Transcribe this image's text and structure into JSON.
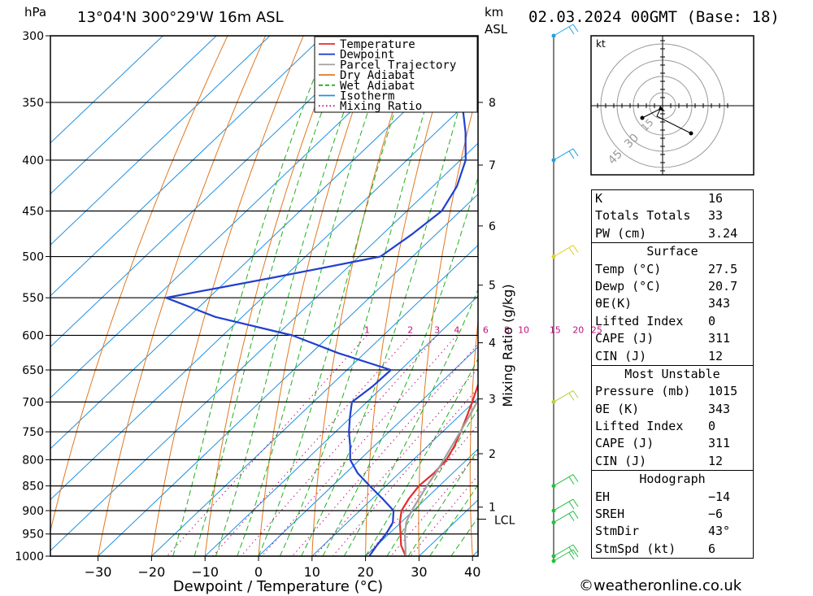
{
  "header": {
    "unit_pressure": "hPa",
    "location": "13°04'N  300°29'W  16m  ASL",
    "unit_km": "km",
    "unit_asl": "ASL",
    "datetime": "02.03.2024  00GMT  (Base: 18)"
  },
  "chart_data": {
    "type": "line",
    "xlabel": "Dewpoint / Temperature (°C)",
    "ylabel_right": "Mixing Ratio (g/kg)",
    "x_ticks": [
      -30,
      -20,
      -10,
      0,
      10,
      20,
      30,
      40
    ],
    "x_tick_labels": [
      "−30",
      "−20",
      "−10",
      "0",
      "10",
      "20",
      "30",
      "40"
    ],
    "pressure_levels": [
      300,
      350,
      400,
      450,
      500,
      550,
      600,
      650,
      700,
      750,
      800,
      850,
      900,
      950,
      1000
    ],
    "km_ticks": [
      1,
      2,
      3,
      4,
      5,
      6,
      7,
      8
    ],
    "lcl_label": "LCL",
    "lcl_pressure": 918,
    "mixing_ratio_labels": [
      "1",
      "2",
      "3",
      "4",
      "6",
      "8",
      "10",
      "15",
      "20",
      "25"
    ],
    "mixing_ratio_values": [
      1,
      2,
      3,
      4,
      6,
      8,
      10,
      15,
      20,
      25
    ],
    "legend": [
      "Temperature",
      "Dewpoint",
      "Parcel Trajectory",
      "Dry Adiabat",
      "Wet Adiabat",
      "Isotherm",
      "Mixing Ratio"
    ],
    "series": [
      {
        "name": "Temperature",
        "color": "#e03030",
        "points": [
          [
            1000,
            27.5
          ],
          [
            975,
            24.5
          ],
          [
            950,
            22.2
          ],
          [
            925,
            19.8
          ],
          [
            900,
            17.8
          ],
          [
            875,
            16.8
          ],
          [
            850,
            16.2
          ],
          [
            825,
            16.5
          ],
          [
            800,
            16.2
          ],
          [
            775,
            15.0
          ],
          [
            750,
            13.4
          ],
          [
            725,
            11.6
          ],
          [
            700,
            9.7
          ],
          [
            675,
            7.6
          ],
          [
            650,
            5.6
          ],
          [
            625,
            6.0
          ],
          [
            600,
            5.2
          ],
          [
            575,
            3.9
          ],
          [
            550,
            2.3
          ],
          [
            525,
            0.6
          ],
          [
            500,
            -1.2
          ],
          [
            475,
            -3.8
          ],
          [
            450,
            -6.8
          ],
          [
            425,
            -10.1
          ],
          [
            400,
            -13.6
          ],
          [
            375,
            -17.6
          ],
          [
            350,
            -22.0
          ],
          [
            325,
            -27.2
          ],
          [
            300,
            -32.5
          ]
        ]
      },
      {
        "name": "Dewpoint",
        "color": "#2040d0",
        "points": [
          [
            1000,
            20.7
          ],
          [
            975,
            20.0
          ],
          [
            950,
            19.5
          ],
          [
            925,
            18.5
          ],
          [
            900,
            16.3
          ],
          [
            875,
            11.8
          ],
          [
            850,
            7.0
          ],
          [
            825,
            2.2
          ],
          [
            800,
            -1.8
          ],
          [
            775,
            -4.5
          ],
          [
            750,
            -7.5
          ],
          [
            725,
            -10.2
          ],
          [
            700,
            -12.8
          ],
          [
            675,
            -12.0
          ],
          [
            650,
            -11.8
          ],
          [
            625,
            -25.0
          ],
          [
            600,
            -37.0
          ],
          [
            575,
            -55.0
          ],
          [
            550,
            -68.0
          ],
          [
            525,
            -52.0
          ],
          [
            500,
            -36.0
          ],
          [
            475,
            -34.5
          ],
          [
            450,
            -33.5
          ],
          [
            425,
            -35.5
          ],
          [
            400,
            -39.0
          ],
          [
            375,
            -44.5
          ],
          [
            350,
            -51.0
          ],
          [
            325,
            -55.0
          ],
          [
            300,
            -62.5
          ]
        ]
      },
      {
        "name": "Parcel Trajectory",
        "color": "#a0a0a0",
        "points": [
          [
            1000,
            27.5
          ],
          [
            975,
            25.3
          ],
          [
            950,
            23.0
          ],
          [
            925,
            21.0
          ],
          [
            918,
            20.6
          ],
          [
            900,
            19.7
          ],
          [
            875,
            18.7
          ],
          [
            850,
            17.7
          ],
          [
            825,
            16.8
          ],
          [
            800,
            15.7
          ],
          [
            775,
            14.5
          ],
          [
            750,
            13.3
          ],
          [
            725,
            12.0
          ],
          [
            700,
            10.6
          ],
          [
            675,
            9.1
          ],
          [
            650,
            7.5
          ],
          [
            625,
            5.8
          ],
          [
            600,
            4.0
          ],
          [
            575,
            2.0
          ],
          [
            550,
            -0.1
          ],
          [
            525,
            -2.4
          ],
          [
            500,
            -4.9
          ],
          [
            475,
            -7.6
          ],
          [
            450,
            -10.5
          ],
          [
            425,
            -13.7
          ],
          [
            400,
            -17.2
          ],
          [
            375,
            -21.0
          ],
          [
            350,
            -25.3
          ],
          [
            325,
            -30.1
          ],
          [
            300,
            -35.5
          ]
        ]
      }
    ]
  },
  "hodograph": {
    "unit": "kt",
    "ring_labels": [
      "45",
      "30",
      "15"
    ]
  },
  "indices": {
    "k": {
      "label": "K",
      "value": "16"
    },
    "tt": {
      "label": "Totals Totals",
      "value": "33"
    },
    "pw": {
      "label": "PW (cm)",
      "value": "3.24"
    }
  },
  "surface": {
    "title": "Surface",
    "temp": {
      "label": "Temp (°C)",
      "value": "27.5"
    },
    "dewp": {
      "label": "Dewp (°C)",
      "value": "20.7"
    },
    "theta_e": {
      "label": "(K)",
      "symbol": "θE",
      "value": "343"
    },
    "li": {
      "label": "Lifted Index",
      "value": "0"
    },
    "cape": {
      "label": "CAPE (J)",
      "value": "311"
    },
    "cin": {
      "label": "CIN (J)",
      "value": "12"
    }
  },
  "most_unstable": {
    "title": "Most Unstable",
    "pressure": {
      "label": "Pressure (mb)",
      "value": "1015"
    },
    "theta_e": {
      "label": " (K)",
      "symbol": "θE",
      "value": "343"
    },
    "li": {
      "label": "Lifted Index",
      "value": "0"
    },
    "cape": {
      "label": "CAPE (J)",
      "value": "311"
    },
    "cin": {
      "label": "CIN (J)",
      "value": "12"
    }
  },
  "hodo_stats": {
    "title": "Hodograph",
    "eh": {
      "label": "EH",
      "value": "−14"
    },
    "sreh": {
      "label": "SREH",
      "value": "−6"
    },
    "stmdir": {
      "label": "StmDir",
      "value": "43°"
    },
    "stmspd": {
      "label": "StmSpd (kt)",
      "value": "6"
    }
  },
  "footer": {
    "copyright_symbol": "©",
    "site": "weatheronline.co.uk"
  },
  "colors": {
    "temperature": "#e03030",
    "dewpoint": "#2040d0",
    "parcel": "#a0a0a0",
    "dry_adiabat": "#e07820",
    "wet_adiabat": "#20b020",
    "isotherm": "#2090e0",
    "mixing_ratio": "#c01080"
  }
}
